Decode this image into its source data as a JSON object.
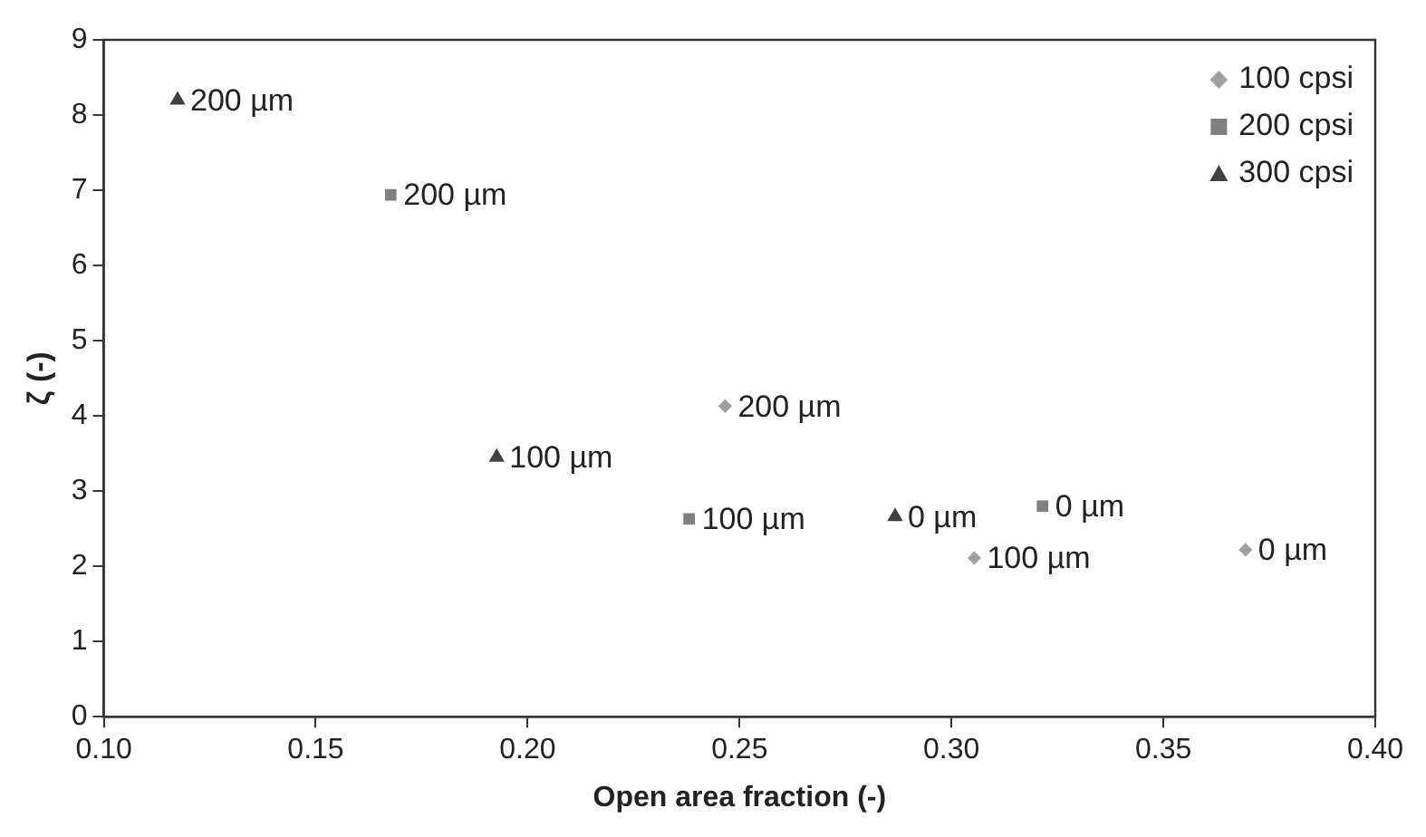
{
  "chart_data": {
    "type": "scatter",
    "xlabel": "Open area fraction (-)",
    "ylabel": "ζ (-)",
    "xlim": [
      0.1,
      0.4
    ],
    "xticks": [
      {
        "value": 0.1,
        "label": "0.10"
      },
      {
        "value": 0.15,
        "label": "0.15"
      },
      {
        "value": 0.2,
        "label": "0.20"
      },
      {
        "value": 0.25,
        "label": "0.25"
      },
      {
        "value": 0.3,
        "label": "0.30"
      },
      {
        "value": 0.35,
        "label": "0.35"
      },
      {
        "value": 0.4,
        "label": "0.40"
      }
    ],
    "ylim": [
      0,
      9
    ],
    "yticks": [
      0,
      1,
      2,
      3,
      4,
      5,
      6,
      7,
      8,
      9
    ],
    "grid": false,
    "legend": "top right",
    "series": [
      {
        "name": "100 cpsi",
        "color": "#a0a0a0",
        "marker": "diamond",
        "x": [
          0.2466,
          0.3054,
          0.3694
        ],
        "values": [
          4.13,
          2.11,
          2.22
        ]
      },
      {
        "name": "200 cpsi",
        "color": "#808080",
        "marker": "square",
        "x": [
          0.1677,
          0.2381,
          0.3215
        ],
        "values": [
          6.94,
          2.63,
          2.8
        ]
      },
      {
        "name": "300 cpsi",
        "color": "#404040",
        "marker": "triangle",
        "x": [
          0.1174,
          0.1927,
          0.2867
        ],
        "values": [
          8.2,
          3.45,
          2.66
        ]
      }
    ],
    "annotations": [
      {
        "text": "200 µm",
        "x": 0.2466,
        "y": 4.13
      },
      {
        "text": "100 µm",
        "x": 0.3054,
        "y": 2.11
      },
      {
        "text": "0 µm",
        "x": 0.3694,
        "y": 2.22
      },
      {
        "text": "200 µm",
        "x": 0.1677,
        "y": 6.94
      },
      {
        "text": "100 µm",
        "x": 0.2381,
        "y": 2.63
      },
      {
        "text": "0 µm",
        "x": 0.3215,
        "y": 2.8
      },
      {
        "text": "200 µm",
        "x": 0.1174,
        "y": 8.2
      },
      {
        "text": "100 µm",
        "x": 0.1927,
        "y": 3.45
      },
      {
        "text": "0 µm",
        "x": 0.2867,
        "y": 2.66
      }
    ]
  }
}
